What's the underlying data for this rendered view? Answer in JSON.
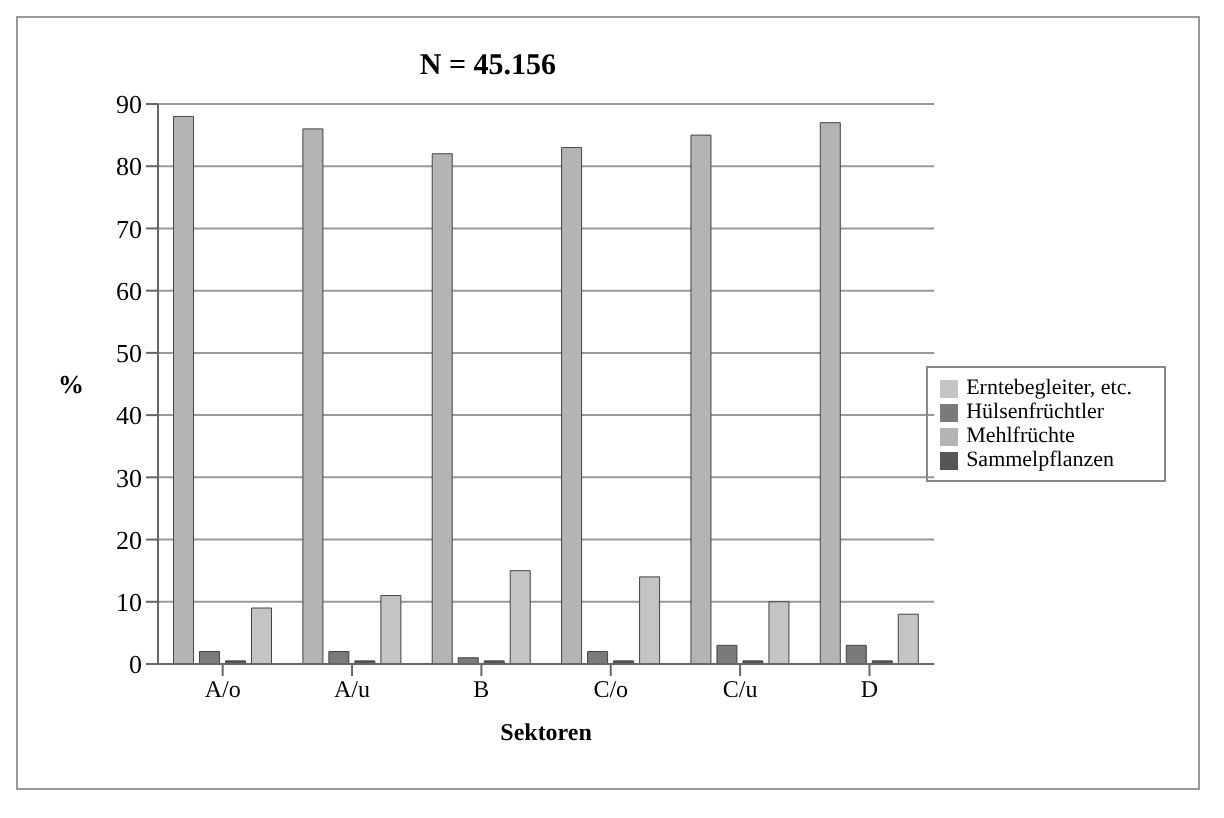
{
  "chart_data": {
    "type": "bar",
    "title": "N = 45.156",
    "xlabel": "Sektoren",
    "ylabel": "%",
    "categories": [
      "A/o",
      "A/u",
      "B",
      "C/o",
      "C/u",
      "D"
    ],
    "series": [
      {
        "name": "Mehlfrüchte",
        "color": "#b4b4b4",
        "values": [
          88,
          86,
          82,
          83,
          85,
          87
        ]
      },
      {
        "name": "Hülsenfrüchtler",
        "color": "#7a7a7a",
        "values": [
          2,
          2,
          1,
          2,
          3,
          3
        ]
      },
      {
        "name": "Sammelpflanzen",
        "color": "#555555",
        "values": [
          0.5,
          0.5,
          0.5,
          0.5,
          0.5,
          0.5
        ]
      },
      {
        "name": "Erntebegleiter, etc.",
        "color": "#c4c4c4",
        "values": [
          9,
          11,
          15,
          14,
          10,
          8
        ]
      }
    ],
    "ylim": [
      0,
      90
    ],
    "yticks": [
      0,
      10,
      20,
      30,
      40,
      50,
      60,
      70,
      80,
      90
    ],
    "grid": "y",
    "legend": "right"
  }
}
